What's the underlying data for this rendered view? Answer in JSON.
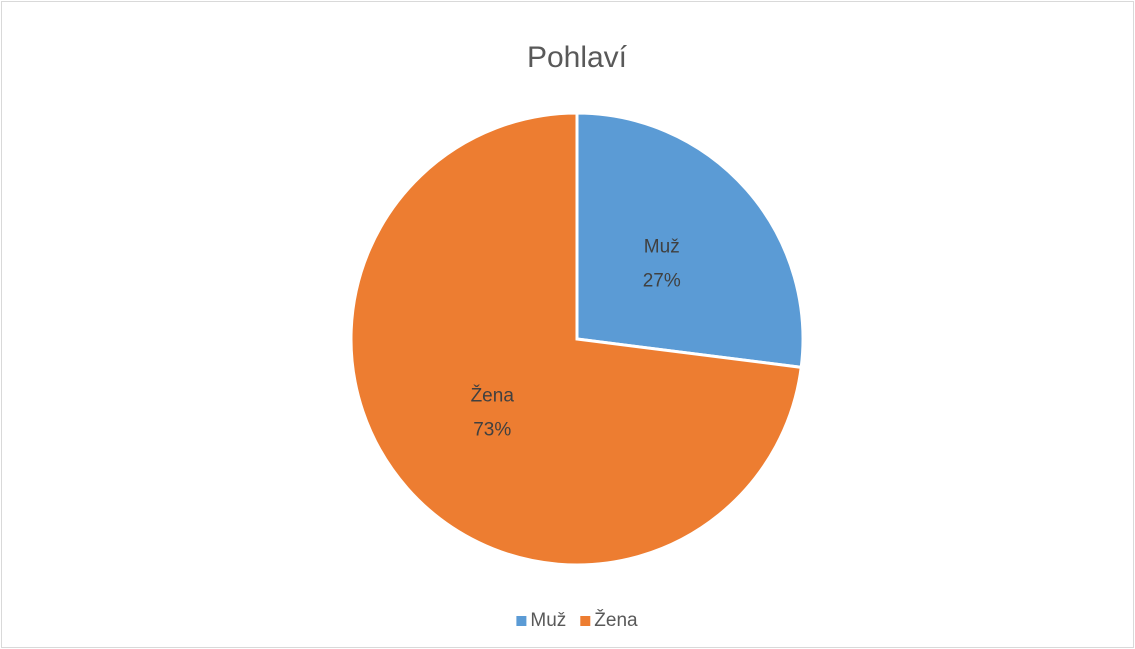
{
  "chart_data": {
    "type": "pie",
    "title": "Pohlaví",
    "categories": [
      "Muž",
      "Žena"
    ],
    "values": [
      27,
      73
    ],
    "value_labels": [
      "27%",
      "73%"
    ],
    "colors": [
      "#5b9bd5",
      "#ed7d31"
    ],
    "legend": "bottom"
  }
}
